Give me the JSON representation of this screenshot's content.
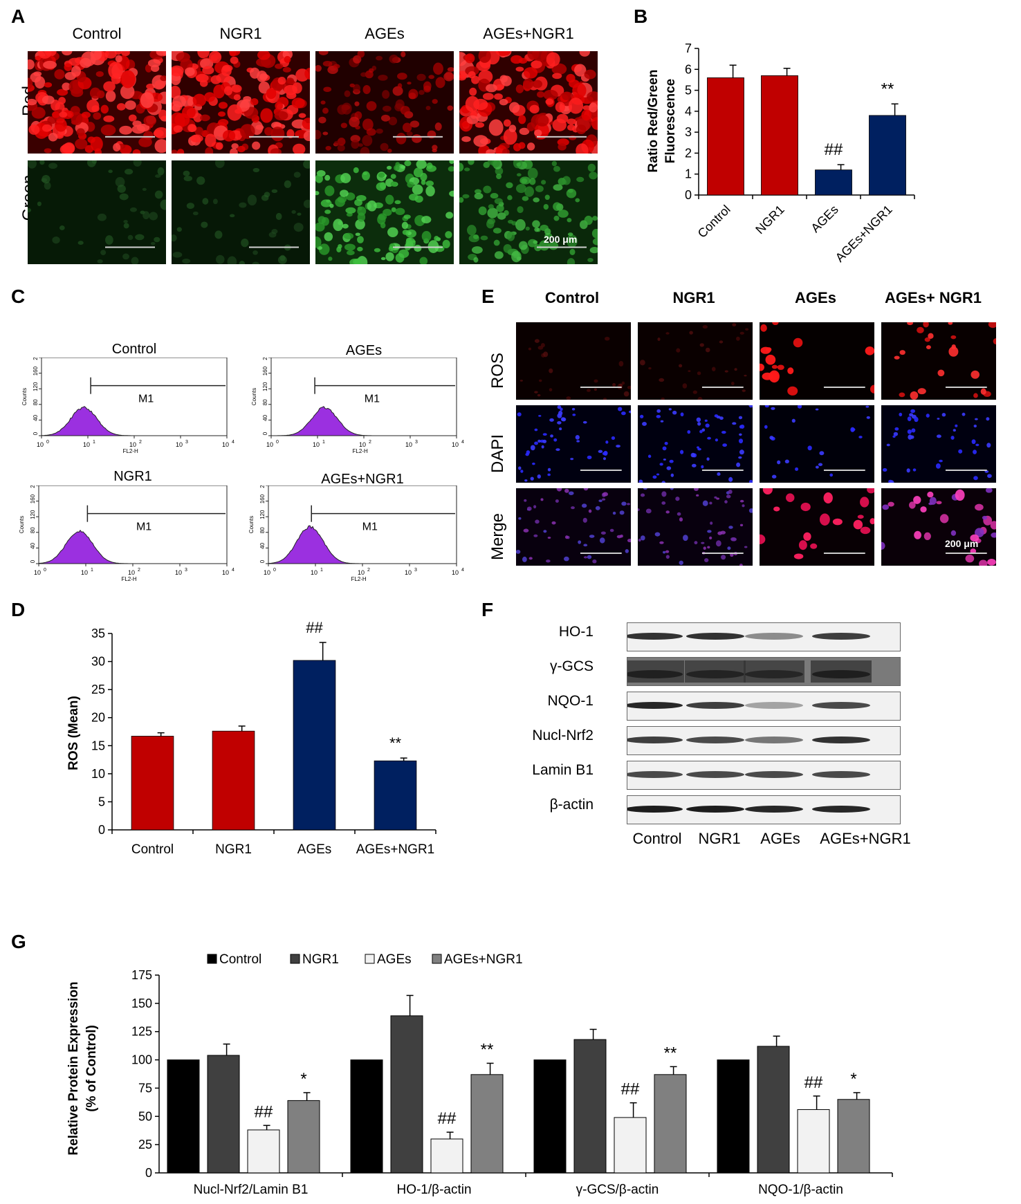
{
  "panels": {
    "A": "A",
    "B": "B",
    "C": "C",
    "D": "D",
    "E": "E",
    "F": "F",
    "G": "G"
  },
  "groups": [
    "Control",
    "NGR1",
    "AGEs",
    "AGEs+NGR1"
  ],
  "panelA": {
    "columns": [
      "Control",
      "NGR1",
      "AGEs",
      "AGEs+NGR1"
    ],
    "rows": [
      "Red",
      "Green"
    ],
    "scale_label": "200 μm"
  },
  "panelC": {
    "plots": [
      {
        "title": "Control",
        "marker": "M1"
      },
      {
        "title": "AGEs",
        "marker": "M1"
      },
      {
        "title": "NGR1",
        "marker": "M1"
      },
      {
        "title": "AGEs+NGR1",
        "marker": "M1"
      }
    ],
    "y_axis_label": "Counts",
    "x_axis_label": "FL2-H",
    "y_ticks": [
      "0",
      "40",
      "80",
      "120",
      "160",
      "200"
    ],
    "x_ticks": [
      "10",
      "10",
      "10",
      "10",
      "10"
    ],
    "x_exponents": [
      "0",
      "1",
      "2",
      "3",
      "4"
    ]
  },
  "panelE": {
    "columns": [
      "Control",
      "NGR1",
      "AGEs",
      "AGEs+ NGR1"
    ],
    "rows": [
      "ROS",
      "DAPI",
      "Merge"
    ],
    "scale_label": "200 μm"
  },
  "panelF": {
    "proteins": [
      "HO-1",
      "γ-GCS",
      "NQO-1",
      "Nucl-Nrf2",
      "Lamin B1",
      "β-actin"
    ],
    "columns": [
      "Control",
      "NGR1",
      "AGEs",
      "AGEs+NGR1"
    ]
  },
  "chart_data": [
    {
      "id": "B",
      "type": "bar",
      "categories": [
        "Control",
        "NGR1",
        "AGEs",
        "AGEs+NGR1"
      ],
      "values": [
        5.6,
        5.7,
        1.2,
        3.8
      ],
      "errors": [
        0.6,
        0.35,
        0.25,
        0.55
      ],
      "colors": [
        "#c00000",
        "#c00000",
        "#002060",
        "#002060"
      ],
      "annotations": [
        "",
        "",
        "##",
        "**"
      ],
      "ylabel": "Ratio Red/Green Fluorescence",
      "ylim": [
        0,
        7
      ],
      "yticks": [
        "0",
        "1",
        "2",
        "3",
        "4",
        "5",
        "6",
        "7"
      ]
    },
    {
      "id": "D",
      "type": "bar",
      "categories": [
        "Control",
        "NGR1",
        "AGEs",
        "AGEs+NGR1"
      ],
      "values": [
        16.7,
        17.6,
        30.2,
        12.3
      ],
      "errors": [
        0.6,
        0.9,
        3.2,
        0.5
      ],
      "colors": [
        "#c00000",
        "#c00000",
        "#002060",
        "#002060"
      ],
      "annotations": [
        "",
        "",
        "##",
        "**"
      ],
      "ylabel": "ROS (Mean)",
      "ylim": [
        0,
        35
      ],
      "yticks": [
        "0",
        "5",
        "10",
        "15",
        "20",
        "25",
        "30",
        "35"
      ]
    },
    {
      "id": "G",
      "type": "bar",
      "categories": [
        "Nucl-Nrf2/Lamin B1",
        "HO-1/β-actin",
        "γ-GCS/β-actin",
        "NQO-1/β-actin"
      ],
      "series": [
        {
          "name": "Control",
          "values": [
            100,
            100,
            100,
            100
          ],
          "errors": [
            0,
            0,
            0,
            0
          ],
          "color": "#000000",
          "annotations": [
            "",
            "",
            "",
            ""
          ]
        },
        {
          "name": "NGR1",
          "values": [
            104,
            139,
            118,
            112
          ],
          "errors": [
            10,
            18,
            9,
            9
          ],
          "color": "#404040",
          "annotations": [
            "",
            "",
            "",
            ""
          ]
        },
        {
          "name": "AGEs",
          "values": [
            38,
            30,
            49,
            56
          ],
          "errors": [
            4,
            6,
            13,
            12
          ],
          "color": "#f2f2f2",
          "annotations": [
            "##",
            "##",
            "##",
            "##"
          ]
        },
        {
          "name": "AGEs+NGR1",
          "values": [
            64,
            87,
            87,
            65
          ],
          "errors": [
            7,
            10,
            7,
            6
          ],
          "color": "#808080",
          "annotations": [
            "*",
            "**",
            "**",
            "*"
          ]
        }
      ],
      "ylabel": "Relative Protein Expression (% of Control)",
      "ylabel_lines": [
        "Relative Protein Expression",
        "(% of Control)"
      ],
      "ylim": [
        0,
        175
      ],
      "yticks": [
        "0",
        "25",
        "50",
        "75",
        "100",
        "125",
        "150",
        "175"
      ]
    }
  ]
}
